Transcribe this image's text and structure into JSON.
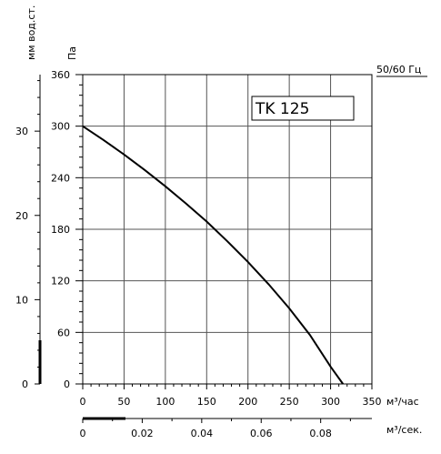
{
  "chart_data": {
    "type": "line",
    "model_label": "TK 125",
    "frequency_label": "50/60 Гц",
    "x_axis": {
      "unit": "м³/час",
      "range": [
        0,
        350
      ],
      "ticks": [
        0,
        50,
        100,
        150,
        200,
        250,
        300,
        350
      ],
      "tick_labels": [
        "0",
        "50",
        "100",
        "150",
        "200",
        "250",
        "300",
        "350"
      ]
    },
    "x_axis_secondary": {
      "unit": "м³/сек.",
      "ticks": [
        0,
        0.02,
        0.04,
        0.06,
        0.08
      ],
      "tick_labels": [
        "0",
        "0.02",
        "0.04",
        "0.06",
        "0.08"
      ]
    },
    "y_axis": {
      "unit": "Па",
      "range": [
        0,
        360
      ],
      "ticks": [
        0,
        60,
        120,
        180,
        240,
        300,
        360
      ],
      "tick_labels": [
        "0",
        "60",
        "120",
        "180",
        "240",
        "300",
        "360"
      ]
    },
    "y_axis_secondary": {
      "unit": "мм вод.ст.",
      "ticks": [
        0,
        10,
        20,
        30
      ],
      "tick_labels": [
        "0",
        "10",
        "20",
        "30"
      ]
    },
    "grid": true,
    "series": [
      {
        "x": [
          0,
          25,
          50,
          75,
          100,
          125,
          150,
          175,
          200,
          225,
          250,
          275,
          300,
          315
        ],
        "y": [
          300,
          284,
          267,
          249,
          230,
          210,
          189,
          166,
          142,
          116,
          88,
          57,
          20,
          0
        ]
      }
    ]
  }
}
